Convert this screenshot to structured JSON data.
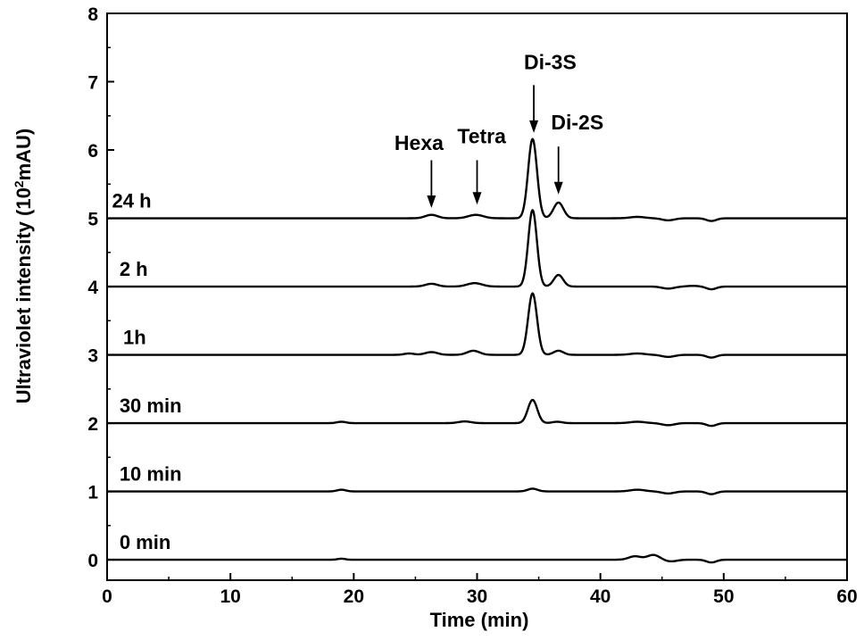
{
  "chart_data": {
    "type": "line",
    "xlabel": "Time (min)",
    "ylabel_main": "Ultraviolet intensity (10",
    "ylabel_sup": "2",
    "ylabel_end": "mAU)",
    "xlim": [
      0,
      60
    ],
    "ylim": [
      -0.3,
      8
    ],
    "x_ticks": [
      "0",
      "10",
      "20",
      "30",
      "40",
      "50",
      "60"
    ],
    "y_ticks": [
      "0",
      "1",
      "2",
      "3",
      "4",
      "5",
      "6",
      "7",
      "8"
    ],
    "grid": false,
    "line_color": "#000000",
    "series": [
      {
        "name": "0 min",
        "label_x": 1,
        "baseline": 0,
        "features": [
          {
            "x": 19.0,
            "h": 0.015,
            "w": 0.3
          },
          {
            "x": 42.8,
            "h": 0.05,
            "w": 0.5
          },
          {
            "x": 44.3,
            "h": 0.07,
            "w": 0.5
          },
          {
            "x": 45.7,
            "h": -0.025,
            "w": 0.5
          },
          {
            "x": 49.0,
            "h": -0.04,
            "w": 0.4
          }
        ]
      },
      {
        "name": "10 min",
        "label_x": 1,
        "baseline": 1,
        "features": [
          {
            "x": 19.0,
            "h": 0.025,
            "w": 0.35
          },
          {
            "x": 34.5,
            "h": 0.04,
            "w": 0.4
          },
          {
            "x": 43.0,
            "h": 0.025,
            "w": 0.6
          },
          {
            "x": 45.5,
            "h": -0.03,
            "w": 0.5
          },
          {
            "x": 49.0,
            "h": -0.04,
            "w": 0.4
          }
        ]
      },
      {
        "name": "30 min",
        "label_x": 1,
        "baseline": 2,
        "features": [
          {
            "x": 19.0,
            "h": 0.02,
            "w": 0.35
          },
          {
            "x": 29.0,
            "h": 0.025,
            "w": 0.5
          },
          {
            "x": 34.5,
            "h": 0.34,
            "w": 0.38
          },
          {
            "x": 36.5,
            "h": 0.02,
            "w": 0.4
          },
          {
            "x": 43.0,
            "h": 0.02,
            "w": 0.6
          },
          {
            "x": 45.5,
            "h": -0.03,
            "w": 0.5
          },
          {
            "x": 49.0,
            "h": -0.04,
            "w": 0.4
          }
        ]
      },
      {
        "name": "1h",
        "label_x": 1.3,
        "baseline": 3,
        "features": [
          {
            "x": 24.5,
            "h": 0.02,
            "w": 0.4
          },
          {
            "x": 26.3,
            "h": 0.04,
            "w": 0.5
          },
          {
            "x": 29.7,
            "h": 0.06,
            "w": 0.5
          },
          {
            "x": 34.5,
            "h": 0.9,
            "w": 0.36
          },
          {
            "x": 36.6,
            "h": 0.06,
            "w": 0.4
          },
          {
            "x": 43.0,
            "h": 0.02,
            "w": 0.6
          },
          {
            "x": 45.5,
            "h": -0.03,
            "w": 0.5
          },
          {
            "x": 49.0,
            "h": -0.04,
            "w": 0.4
          }
        ]
      },
      {
        "name": "2 h",
        "label_x": 1,
        "baseline": 4,
        "features": [
          {
            "x": 26.3,
            "h": 0.04,
            "w": 0.5
          },
          {
            "x": 29.8,
            "h": 0.05,
            "w": 0.6
          },
          {
            "x": 34.5,
            "h": 1.12,
            "w": 0.35
          },
          {
            "x": 36.6,
            "h": 0.17,
            "w": 0.38
          },
          {
            "x": 45.5,
            "h": -0.03,
            "w": 0.5
          },
          {
            "x": 47.5,
            "h": 0.01,
            "w": 0.5
          },
          {
            "x": 49.0,
            "h": -0.04,
            "w": 0.4
          }
        ]
      },
      {
        "name": "24 h",
        "label_x": 0.4,
        "baseline": 5,
        "features": [
          {
            "x": 26.3,
            "h": 0.05,
            "w": 0.5
          },
          {
            "x": 29.9,
            "h": 0.05,
            "w": 0.6
          },
          {
            "x": 34.5,
            "h": 1.16,
            "w": 0.36
          },
          {
            "x": 36.6,
            "h": 0.23,
            "w": 0.4
          },
          {
            "x": 43.0,
            "h": 0.02,
            "w": 0.6
          },
          {
            "x": 45.5,
            "h": -0.03,
            "w": 0.5
          },
          {
            "x": 49.0,
            "h": -0.04,
            "w": 0.4
          }
        ]
      }
    ],
    "annotations": [
      {
        "text": "Hexa",
        "arrow_x": 26.3,
        "arrow_top": 5.85,
        "arrow_bottom": 5.15,
        "text_x": 23.3,
        "text_y": 6.0
      },
      {
        "text": "Tetra",
        "arrow_x": 30.0,
        "arrow_top": 5.85,
        "arrow_bottom": 5.2,
        "text_x": 28.4,
        "text_y": 6.1
      },
      {
        "text": "Di-3S",
        "arrow_x": 34.6,
        "arrow_top": 6.95,
        "arrow_bottom": 6.25,
        "text_x": 33.8,
        "text_y": 7.18
      },
      {
        "text": "Di-2S",
        "arrow_x": 36.6,
        "arrow_top": 6.05,
        "arrow_bottom": 5.35,
        "text_x": 36.0,
        "text_y": 6.3
      }
    ]
  }
}
